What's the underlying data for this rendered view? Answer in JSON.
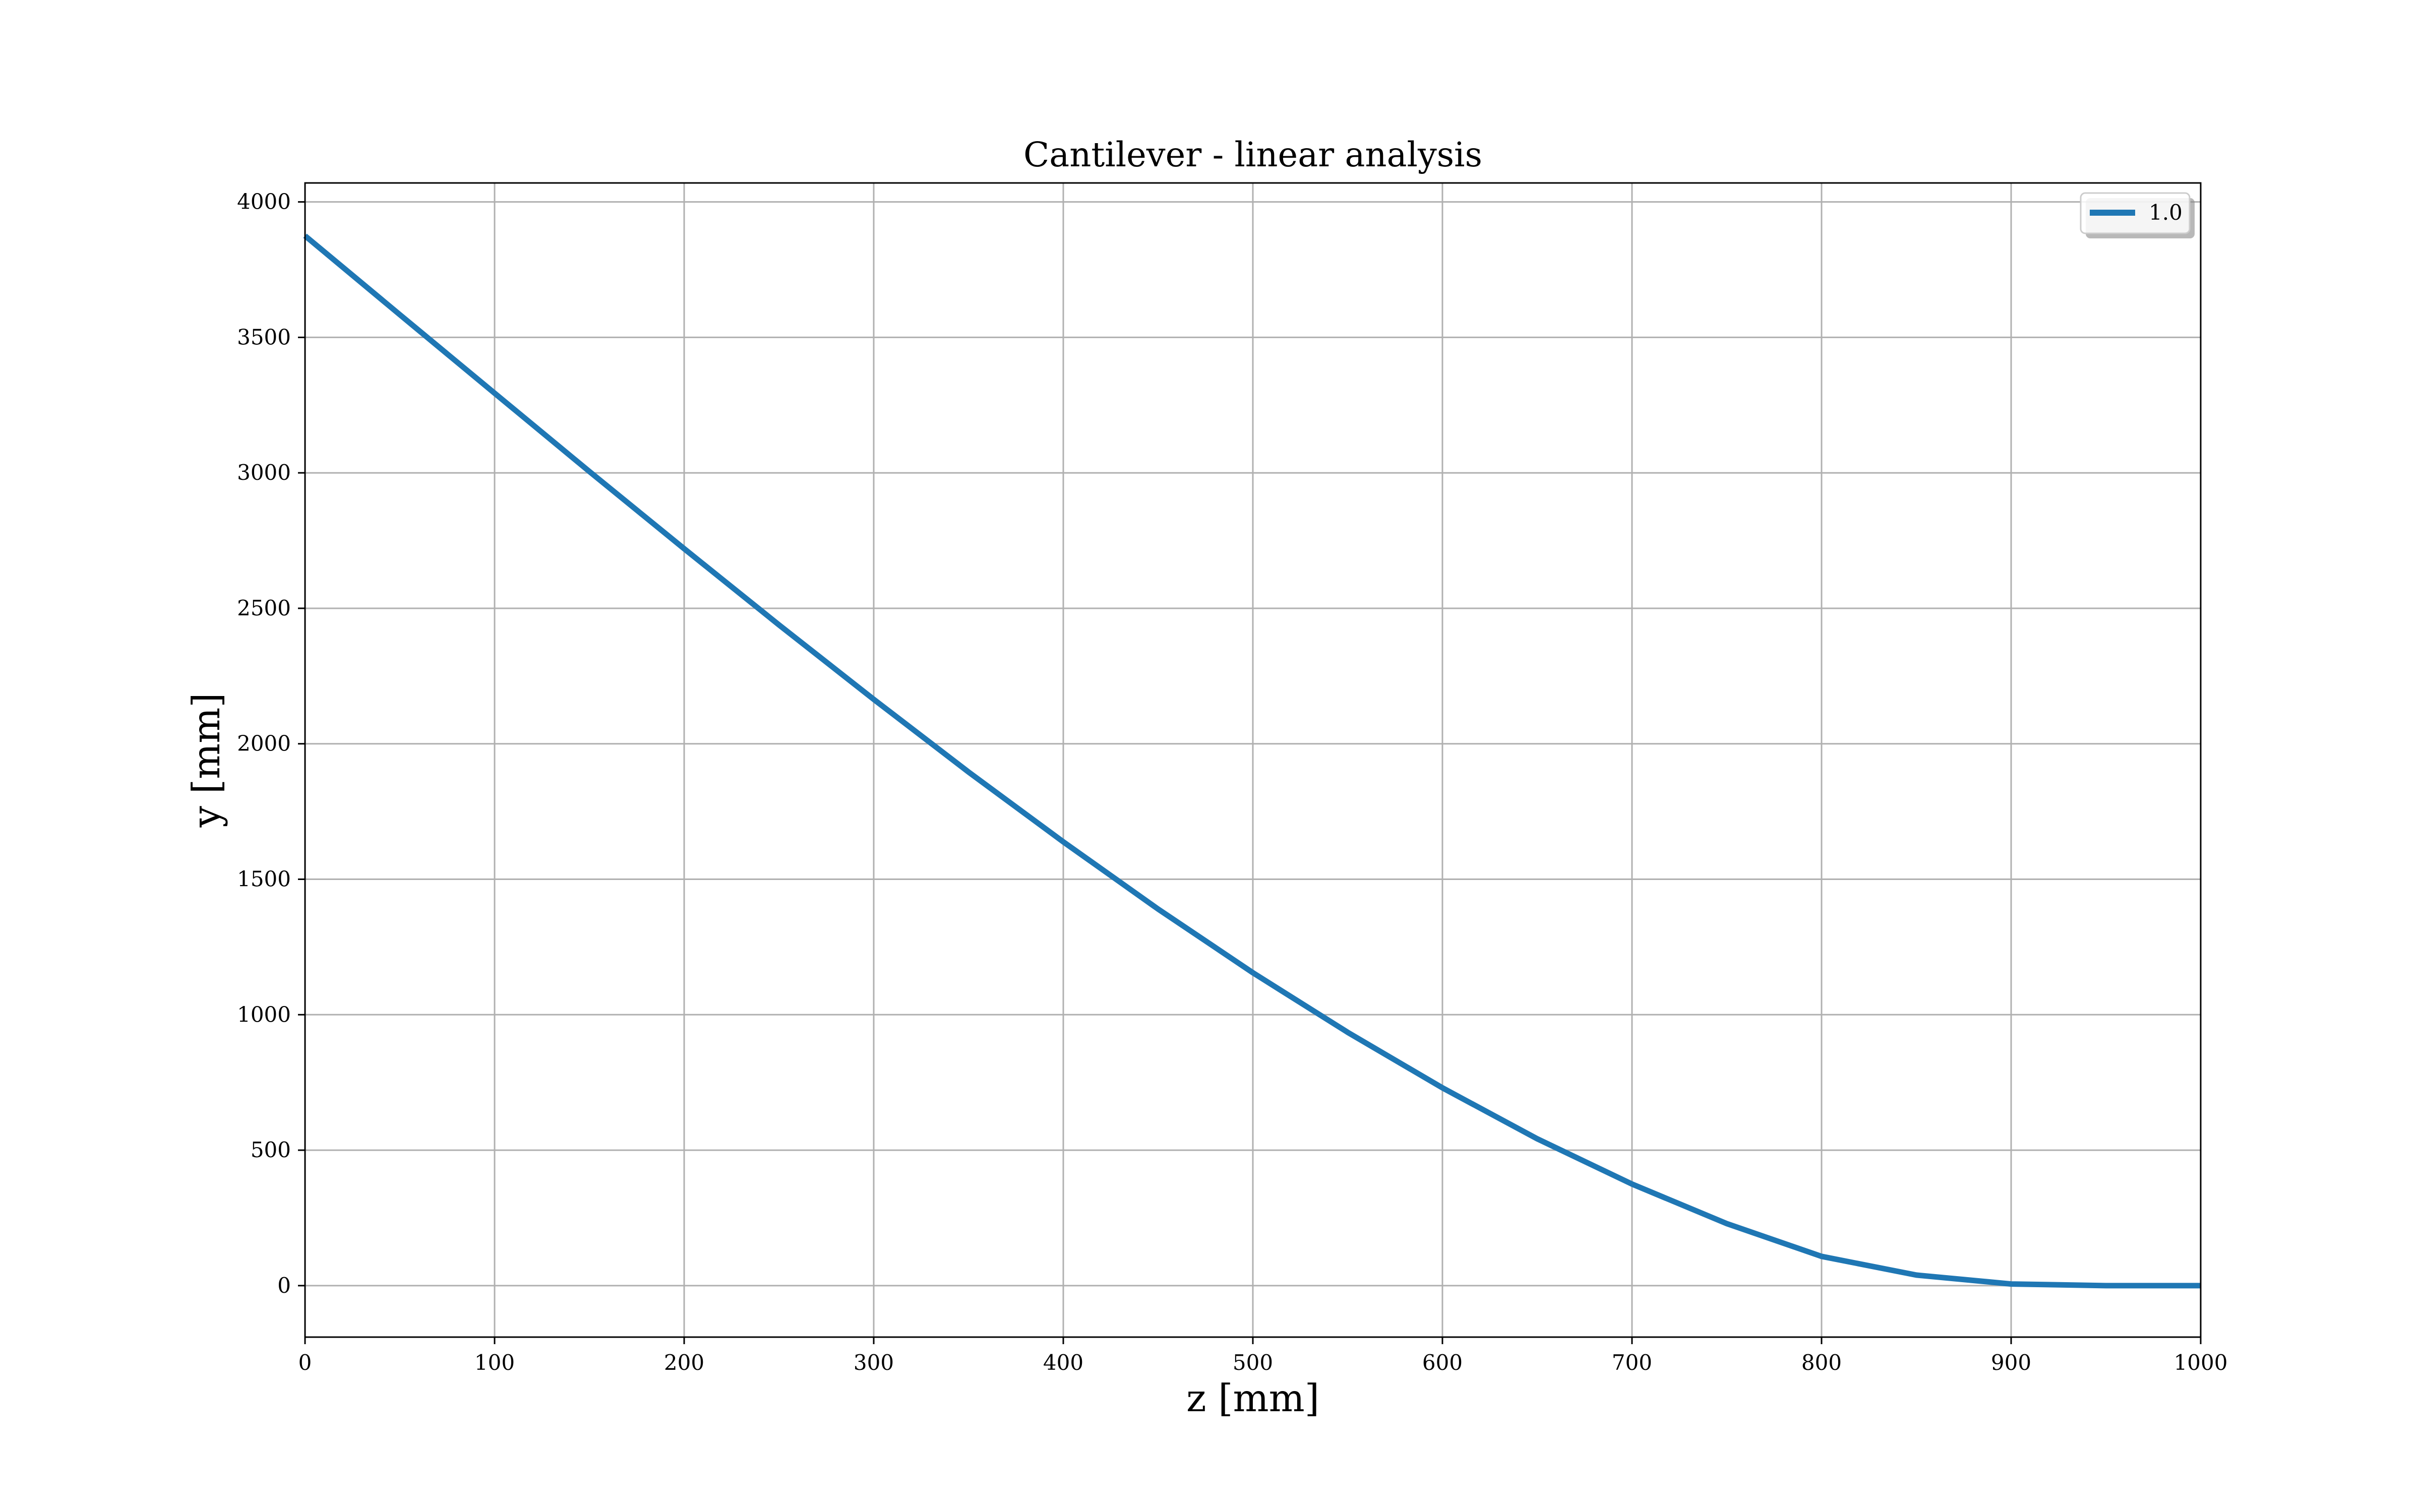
{
  "chart_data": {
    "type": "line",
    "title": "Cantilever - linear analysis",
    "xlabel": "z [mm]",
    "ylabel": "y [mm]",
    "xlim": [
      0,
      1000
    ],
    "ylim": [
      -190,
      4070
    ],
    "xticks": [
      0,
      100,
      200,
      300,
      400,
      500,
      600,
      700,
      800,
      900,
      1000
    ],
    "yticks": [
      0,
      500,
      1000,
      1500,
      2000,
      2500,
      3000,
      3500,
      4000
    ],
    "grid": true,
    "legend_position": "top-right",
    "series": [
      {
        "name": "1.0",
        "color": "#1f77b4",
        "x": [
          0,
          50,
          100,
          150,
          200,
          250,
          300,
          350,
          400,
          450,
          500,
          550,
          600,
          650,
          700,
          750,
          800,
          850,
          900,
          950,
          1000
        ],
        "y": [
          3875,
          3584,
          3294,
          3005,
          2720,
          2439,
          2164,
          1896,
          1638,
          1390,
          1155,
          935,
          730,
          542,
          375,
          229,
          108,
          39,
          6,
          0,
          0
        ]
      }
    ]
  }
}
